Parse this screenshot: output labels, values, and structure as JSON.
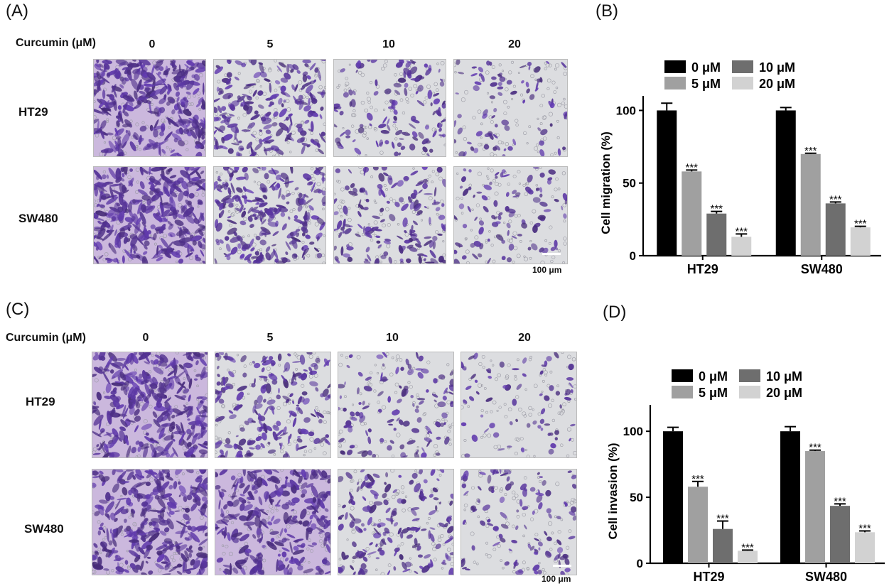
{
  "figure": {
    "panel_A": {
      "label": "(A)",
      "treatment_label": "Curcumin (μM)",
      "doses": [
        "0",
        "5",
        "10",
        "20"
      ],
      "rows": [
        "HT29",
        "SW480"
      ],
      "scale_text": "100 μm"
    },
    "panel_C": {
      "label": "(C)",
      "treatment_label": "Curcumin (μM)",
      "doses": [
        "0",
        "5",
        "10",
        "20"
      ],
      "rows": [
        "HT29",
        "SW480"
      ],
      "scale_text": "100 μm"
    },
    "image_densities": {
      "A": [
        [
          1.0,
          0.6,
          0.3,
          0.15
        ],
        [
          1.0,
          0.7,
          0.4,
          0.2
        ]
      ],
      "C": [
        [
          1.0,
          0.55,
          0.28,
          0.1
        ],
        [
          1.0,
          0.85,
          0.45,
          0.25
        ]
      ]
    },
    "stain_color": "#6a4aa0",
    "bg_color": "#dcdde0"
  },
  "chart_data": [
    {
      "panel_label": "(B)",
      "type": "bar",
      "categories": [
        "HT29",
        "SW480"
      ],
      "series": [
        {
          "name": "0 μM",
          "color": "#000000",
          "values": [
            100,
            100
          ],
          "errors": [
            5,
            2
          ],
          "sig": [
            "",
            ""
          ]
        },
        {
          "name": "5 μM",
          "color": "#a0a0a0",
          "values": [
            58,
            70
          ],
          "errors": [
            1,
            0.5
          ],
          "sig": [
            "***",
            "***"
          ]
        },
        {
          "name": "10 μM",
          "color": "#6e6e6e",
          "values": [
            29,
            36
          ],
          "errors": [
            1.5,
            1
          ],
          "sig": [
            "***",
            "***"
          ]
        },
        {
          "name": "20 μM",
          "color": "#d2d2d2",
          "values": [
            13,
            19.5
          ],
          "errors": [
            2,
            0.7
          ],
          "sig": [
            "***",
            "***"
          ]
        }
      ],
      "ylabel": "Cell migration (%)",
      "xlabel": "",
      "ylim": [
        0,
        110
      ],
      "yticks": [
        0,
        50,
        100
      ],
      "legend": "top"
    },
    {
      "panel_label": "(D)",
      "type": "bar",
      "categories": [
        "HT29",
        "SW480"
      ],
      "series": [
        {
          "name": "0 μM",
          "color": "#000000",
          "values": [
            100,
            100
          ],
          "errors": [
            3,
            3.5
          ],
          "sig": [
            "",
            ""
          ]
        },
        {
          "name": "5 μM",
          "color": "#a0a0a0",
          "values": [
            58,
            85
          ],
          "errors": [
            4,
            0.7
          ],
          "sig": [
            "***",
            "***"
          ]
        },
        {
          "name": "10 μM",
          "color": "#6e6e6e",
          "values": [
            26,
            43.5
          ],
          "errors": [
            6,
            1.5
          ],
          "sig": [
            "***",
            "***"
          ]
        },
        {
          "name": "20 μM",
          "color": "#d2d2d2",
          "values": [
            9.5,
            23.5
          ],
          "errors": [
            0.5,
            1
          ],
          "sig": [
            "***",
            "***"
          ]
        }
      ],
      "ylabel": "Cell invasion (%)",
      "xlabel": "",
      "ylim": [
        0,
        120
      ],
      "yticks": [
        0,
        50,
        100
      ],
      "legend": "top"
    }
  ]
}
